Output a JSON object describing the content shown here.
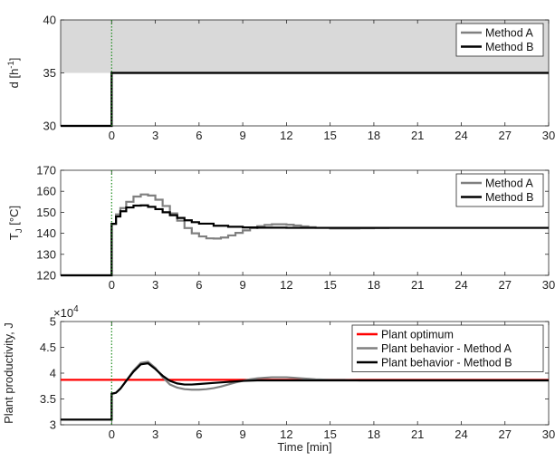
{
  "chart_data": [
    {
      "type": "line",
      "panel": "top",
      "ylabel": "d [h",
      "ylabel_sup": "-1",
      "ylabel_tail": "]",
      "xlabel": "",
      "xlim": [
        -3.5,
        30
      ],
      "ylim": [
        30,
        40
      ],
      "x_ticks": [
        0,
        3,
        6,
        9,
        12,
        15,
        18,
        21,
        24,
        27,
        30
      ],
      "y_ticks": [
        30,
        35,
        40
      ],
      "shaded_region": {
        "y_from": 35,
        "y_to": 40,
        "color": "#d9d9d9"
      },
      "event_line_x": 0,
      "legend_position": "top-right",
      "series": [
        {
          "name": "Method A",
          "color": "#808080",
          "x": [
            -3.5,
            0,
            0,
            30
          ],
          "y": [
            30,
            30,
            35,
            35
          ]
        },
        {
          "name": "Method B",
          "color": "#000000",
          "x": [
            -3.5,
            0,
            0,
            30
          ],
          "y": [
            30,
            30,
            35,
            35
          ]
        }
      ]
    },
    {
      "type": "line",
      "panel": "middle",
      "ylabel": "T",
      "ylabel_sub": "J",
      "ylabel_tail": " [°C]",
      "xlabel": "",
      "xlim": [
        -3.5,
        30
      ],
      "ylim": [
        120,
        170
      ],
      "x_ticks": [
        0,
        3,
        6,
        9,
        12,
        15,
        18,
        21,
        24,
        27,
        30
      ],
      "y_ticks": [
        120,
        130,
        140,
        150,
        160,
        170
      ],
      "event_line_x": 0,
      "legend_position": "top-right",
      "series": [
        {
          "name": "Method A",
          "color": "#808080",
          "x": [
            -3.5,
            0,
            0,
            0.3,
            0.6,
            1.0,
            1.5,
            2.0,
            2.5,
            3.0,
            3.5,
            4.0,
            4.5,
            5.0,
            5.5,
            6.0,
            6.5,
            7.0,
            7.5,
            8.0,
            8.5,
            9.0,
            9.5,
            10.0,
            10.5,
            11.0,
            11.5,
            12.0,
            12.5,
            13.0,
            13.5,
            14.0,
            15.0,
            16.0,
            17.0,
            18.0,
            19.0,
            20.0,
            30.0
          ],
          "y": [
            120,
            120,
            144.5,
            149,
            152,
            155,
            157.5,
            158.5,
            158,
            156,
            153,
            149.5,
            146,
            142.5,
            140,
            138.5,
            137.6,
            137.5,
            138,
            139,
            140.2,
            141.4,
            142.5,
            143.4,
            144,
            144.3,
            144.3,
            144.1,
            143.7,
            143.3,
            142.9,
            142.6,
            142.3,
            142.3,
            142.4,
            142.5,
            142.6,
            142.6,
            142.6
          ]
        },
        {
          "name": "Method B",
          "color": "#000000",
          "x": [
            -3.5,
            0,
            0,
            0.3,
            0.6,
            1.0,
            1.5,
            2.0,
            2.5,
            3.0,
            3.5,
            4.0,
            4.5,
            5.0,
            5.5,
            6.0,
            7.0,
            8.0,
            9.0,
            10.0,
            12.0,
            15.0,
            30.0
          ],
          "y": [
            120,
            120,
            144.5,
            148,
            150.5,
            152.3,
            153.2,
            153.3,
            152.6,
            151.5,
            150,
            148.6,
            147.3,
            146.2,
            145.3,
            144.6,
            143.6,
            143.1,
            142.8,
            142.7,
            142.6,
            142.6,
            142.6
          ]
        }
      ]
    },
    {
      "type": "line",
      "panel": "bottom",
      "ylabel": "Plant productivity, J",
      "xlabel": "Time [min]",
      "xlim": [
        -3.5,
        30
      ],
      "ylim": [
        3,
        5
      ],
      "y_exponent_label": "×10",
      "y_exponent_power": "4",
      "x_ticks": [
        0,
        3,
        6,
        9,
        12,
        15,
        18,
        21,
        24,
        27,
        30
      ],
      "y_ticks": [
        3,
        3.5,
        4,
        4.5,
        5
      ],
      "event_line_x": 0,
      "legend_position": "top-right",
      "series": [
        {
          "name": "Plant optimum",
          "color": "#ff0000",
          "x": [
            -3.5,
            30
          ],
          "y": [
            3.87,
            3.87
          ]
        },
        {
          "name": "Plant behavior - Method A",
          "color": "#808080",
          "x": [
            -3.5,
            0,
            0,
            0.3,
            0.6,
            1.0,
            1.5,
            2.0,
            2.5,
            3.0,
            3.5,
            4.0,
            4.5,
            5.0,
            5.5,
            6.0,
            6.5,
            7.0,
            7.5,
            8.0,
            8.5,
            9.0,
            9.5,
            10.0,
            10.5,
            11.0,
            11.5,
            12.0,
            12.5,
            13.0,
            13.5,
            14.0,
            15.0,
            16.0,
            17.0,
            18.0,
            20.0,
            30.0
          ],
          "y": [
            3.1,
            3.1,
            3.6,
            3.62,
            3.7,
            3.85,
            4.05,
            4.2,
            4.22,
            4.1,
            3.92,
            3.78,
            3.72,
            3.69,
            3.68,
            3.68,
            3.69,
            3.71,
            3.74,
            3.78,
            3.82,
            3.85,
            3.88,
            3.9,
            3.91,
            3.92,
            3.92,
            3.92,
            3.91,
            3.9,
            3.89,
            3.88,
            3.87,
            3.87,
            3.86,
            3.86,
            3.86,
            3.86
          ]
        },
        {
          "name": "Plant behavior - Method B",
          "color": "#000000",
          "x": [
            -3.5,
            0,
            0,
            0.3,
            0.6,
            1.0,
            1.5,
            2.0,
            2.5,
            3.0,
            3.5,
            4.0,
            4.5,
            5.0,
            5.5,
            6.0,
            7.0,
            8.0,
            9.0,
            10.0,
            12.0,
            15.0,
            30.0
          ],
          "y": [
            3.1,
            3.1,
            3.6,
            3.62,
            3.7,
            3.85,
            4.03,
            4.17,
            4.19,
            4.08,
            3.95,
            3.85,
            3.8,
            3.78,
            3.78,
            3.79,
            3.81,
            3.83,
            3.85,
            3.86,
            3.86,
            3.86,
            3.86
          ]
        }
      ]
    }
  ]
}
